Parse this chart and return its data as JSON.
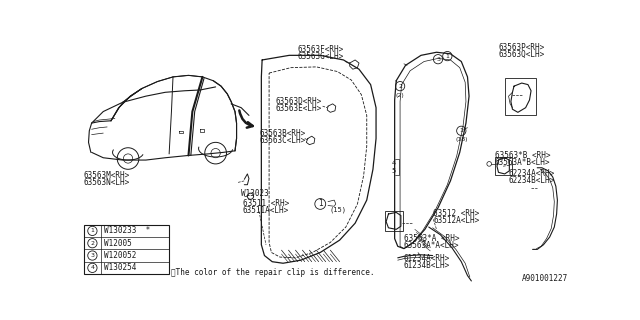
{
  "bg_color": "#ffffff",
  "line_color": "#1a1a1a",
  "fig_id": "A901001227",
  "footnote": "※The color of the repair clip is difference.",
  "legend_items": [
    {
      "num": "1",
      "code": "W130233  ※"
    },
    {
      "num": "2",
      "code": "W12005"
    },
    {
      "num": "3",
      "code": "W120052"
    },
    {
      "num": "4",
      "code": "W130254"
    }
  ]
}
